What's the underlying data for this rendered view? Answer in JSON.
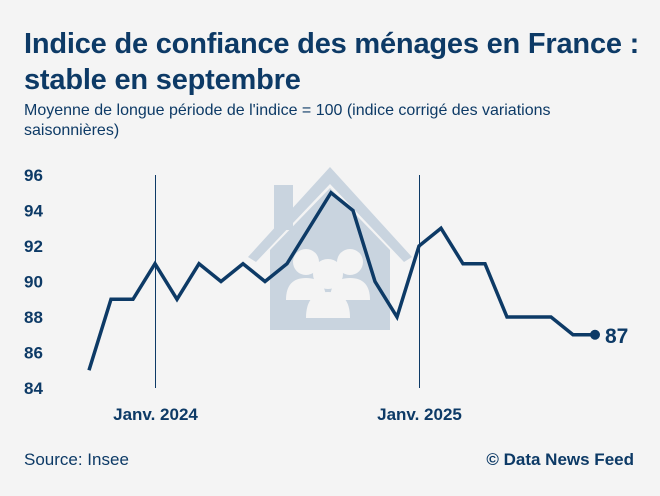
{
  "header": {
    "title": "Indice de confiance des ménages en France : stable en septembre",
    "subtitle": "Moyenne de longue période de l'indice = 100 (indice corrigé des variations saisonnières)"
  },
  "footer": {
    "source": "Source: Insee",
    "credit": "© Data News Feed"
  },
  "chart_data": {
    "type": "line",
    "y_ticks": [
      84,
      86,
      88,
      90,
      92,
      94,
      96
    ],
    "ylim": [
      84,
      96
    ],
    "x_reference_labels": [
      {
        "label": "Janv. 2024",
        "index": 3
      },
      {
        "label": "Janv. 2025",
        "index": 15
      }
    ],
    "series": [
      {
        "values": [
          85,
          89,
          89,
          91,
          89,
          91,
          90,
          91,
          90,
          91,
          93,
          95,
          94,
          90,
          88,
          92,
          93,
          91,
          91,
          88,
          88,
          88,
          87,
          87
        ]
      }
    ],
    "last_value_label": "87",
    "grid": false,
    "background_icon": "house-with-family-icon",
    "colors": {
      "line": "#0d3a66",
      "icon": "#c9d4df",
      "text": "#0d3a66"
    }
  }
}
